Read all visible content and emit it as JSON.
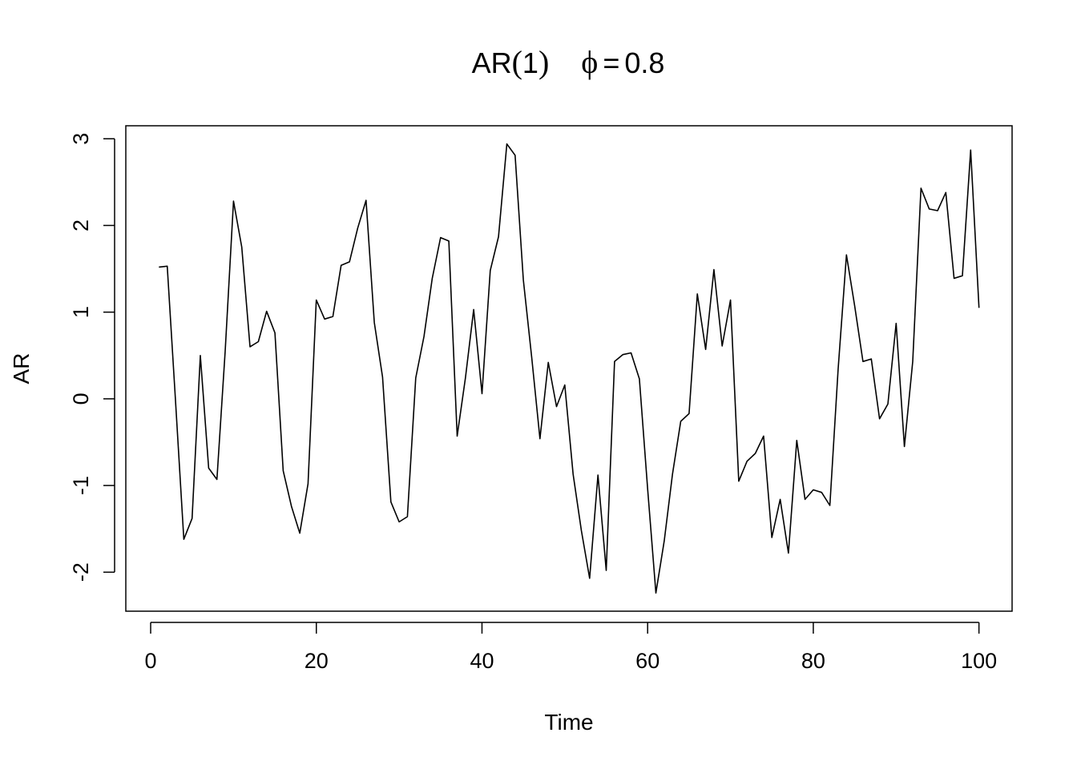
{
  "chart_data": {
    "type": "line",
    "title": {
      "prefix": "AR",
      "paren_open": "(",
      "order": "1",
      "paren_close": ")",
      "phi": "ϕ",
      "equals": "=",
      "value": "0.8"
    },
    "xlabel": "Time",
    "ylabel": "AR",
    "xlim": [
      -3,
      104
    ],
    "ylim": [
      -2.45,
      3.15
    ],
    "x_ticks": [
      0,
      20,
      40,
      60,
      80,
      100
    ],
    "y_ticks": [
      -2,
      -1,
      0,
      1,
      2,
      3
    ],
    "x_tick_labels": [
      "0",
      "20",
      "40",
      "60",
      "80",
      "100"
    ],
    "y_tick_labels": [
      "-2",
      "-1",
      "0",
      "1",
      "2",
      "3"
    ],
    "grid": false,
    "legend": "none",
    "line_color": "#000000",
    "series": [
      {
        "x": [
          1,
          2,
          3,
          4,
          5,
          6,
          7,
          8,
          9,
          10,
          11,
          12,
          13,
          14,
          15,
          16,
          17,
          18,
          19,
          20,
          21,
          22,
          23,
          24,
          25,
          26,
          27,
          28,
          29,
          30,
          31,
          32,
          33,
          34,
          35,
          36,
          37,
          38,
          39,
          40,
          41,
          42,
          43,
          44,
          45,
          46,
          47,
          48,
          49,
          50,
          51,
          52,
          53,
          54,
          55,
          56,
          57,
          58,
          59,
          60,
          61,
          62,
          63,
          64,
          65,
          66,
          67,
          68,
          69,
          70,
          71,
          72,
          73,
          74,
          75,
          76,
          77,
          78,
          79,
          80,
          81,
          82,
          83,
          84,
          85,
          86,
          87,
          88,
          89,
          90,
          91,
          92,
          93,
          94,
          95,
          96,
          97,
          98,
          99,
          100
        ],
        "values": [
          1.52,
          1.53,
          -0.02,
          -1.62,
          -1.38,
          0.5,
          -0.8,
          -0.93,
          0.55,
          2.28,
          1.75,
          0.6,
          0.66,
          1.01,
          0.76,
          -0.83,
          -1.24,
          -1.55,
          -0.98,
          1.14,
          0.92,
          0.95,
          1.54,
          1.58,
          1.97,
          2.29,
          0.88,
          0.25,
          -1.19,
          -1.42,
          -1.36,
          0.24,
          0.72,
          1.39,
          1.86,
          1.82,
          -0.43,
          0.24,
          1.03,
          0.06,
          1.48,
          1.87,
          2.94,
          2.81,
          1.37,
          0.48,
          -0.46,
          0.42,
          -0.09,
          0.16,
          -0.87,
          -1.52,
          -2.07,
          -0.88,
          -1.98,
          0.43,
          0.51,
          0.53,
          0.23,
          -1.04,
          -2.24,
          -1.64,
          -0.87,
          -0.26,
          -0.17,
          1.21,
          0.57,
          1.49,
          0.61,
          1.14,
          -0.95,
          -0.72,
          -0.63,
          -0.43,
          -1.6,
          -1.16,
          -1.78,
          -0.48,
          -1.16,
          -1.05,
          -1.08,
          -1.23,
          0.34,
          1.66,
          1.07,
          0.43,
          0.46,
          -0.23,
          -0.06,
          0.87,
          -0.55,
          0.43,
          2.43,
          2.19,
          2.17,
          2.38,
          1.39,
          1.42,
          2.87,
          1.05
        ]
      }
    ]
  }
}
